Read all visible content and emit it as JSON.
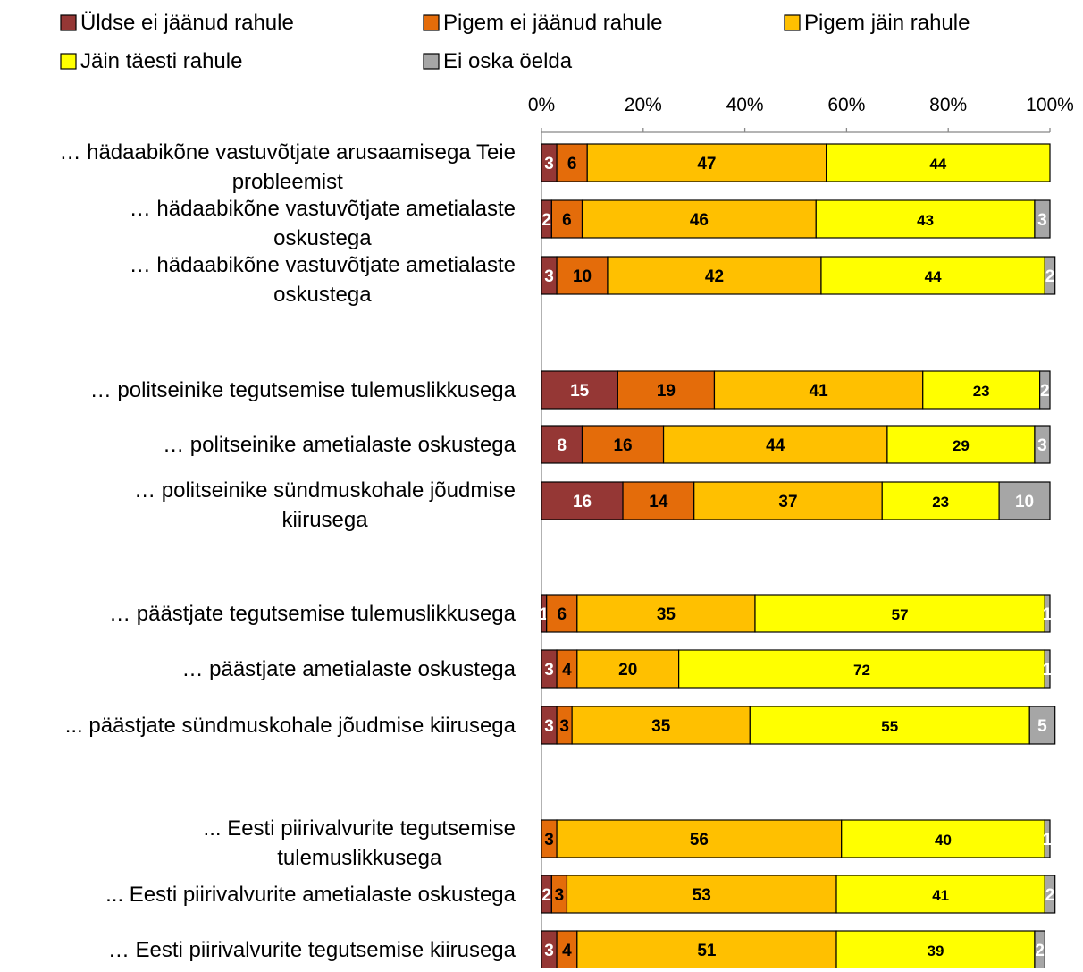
{
  "chart_data": {
    "type": "bar",
    "orientation": "horizontal",
    "stacked": "percent",
    "legend_position": "top",
    "grid": false,
    "xlim": [
      0,
      100
    ],
    "x_ticks": [
      "0%",
      "20%",
      "40%",
      "60%",
      "80%",
      "100%"
    ],
    "legend": [
      {
        "label": "Üldse ei jäänud rahule",
        "color": "#953735"
      },
      {
        "label": "Pigem ei jäänud rahule",
        "color": "#E46C0A"
      },
      {
        "label": "Pigem jäin rahule",
        "color": "#FFC000"
      },
      {
        "label": "Jäin täesti rahule",
        "color": "#FFFF00"
      },
      {
        "label": "Ei oska öelda",
        "color": "#A6A6A6"
      }
    ],
    "label_colors": [
      "#FFFFFF",
      "#000000",
      "#000000",
      "#000000",
      "#FFFFFF"
    ],
    "categories": [
      {
        "label": [
          "… hädaabikõne vastuvõtjate arusaamisega Teie",
          "probleemist"
        ],
        "group": 0,
        "values": [
          3,
          6,
          47,
          44,
          0
        ]
      },
      {
        "label": [
          "… hädaabikõne vastuvõtjate ametialaste",
          "oskustega"
        ],
        "group": 0,
        "values": [
          2,
          6,
          46,
          43,
          3
        ]
      },
      {
        "label": [
          "… hädaabikõne vastuvõtjate ametialaste",
          "oskustega"
        ],
        "group": 0,
        "values": [
          3,
          10,
          42,
          44,
          2
        ]
      },
      {
        "label": [
          "… politseinike tegutsemise tulemuslikkusega"
        ],
        "group": 1,
        "values": [
          15,
          19,
          41,
          23,
          2
        ]
      },
      {
        "label": [
          "… politseinike ametialaste oskustega"
        ],
        "group": 1,
        "values": [
          8,
          16,
          44,
          29,
          3
        ]
      },
      {
        "label": [
          "… politseinike sündmuskohale jõudmise",
          "kiirusega"
        ],
        "group": 1,
        "values": [
          16,
          14,
          37,
          23,
          10
        ]
      },
      {
        "label": [
          "… päästjate tegutsemise tulemuslikkusega"
        ],
        "group": 2,
        "values": [
          1,
          6,
          35,
          57,
          1
        ]
      },
      {
        "label": [
          "… päästjate ametialaste oskustega"
        ],
        "group": 2,
        "values": [
          3,
          4,
          20,
          72,
          1
        ]
      },
      {
        "label": [
          "... päästjate sündmuskohale jõudmise kiirusega"
        ],
        "group": 2,
        "values": [
          3,
          3,
          35,
          55,
          5
        ]
      },
      {
        "label": [
          "...  Eesti piirivalvurite tegutsemise",
          "tulemuslikkusega"
        ],
        "group": 3,
        "values": [
          0,
          3,
          56,
          40,
          1
        ]
      },
      {
        "label": [
          "...  Eesti piirivalvurite ametialaste oskustega"
        ],
        "group": 3,
        "values": [
          2,
          3,
          53,
          41,
          2
        ]
      },
      {
        "label": [
          "…  Eesti piirivalvurite tegutsemise kiirusega"
        ],
        "group": 3,
        "values": [
          3,
          4,
          51,
          39,
          2
        ]
      }
    ]
  }
}
